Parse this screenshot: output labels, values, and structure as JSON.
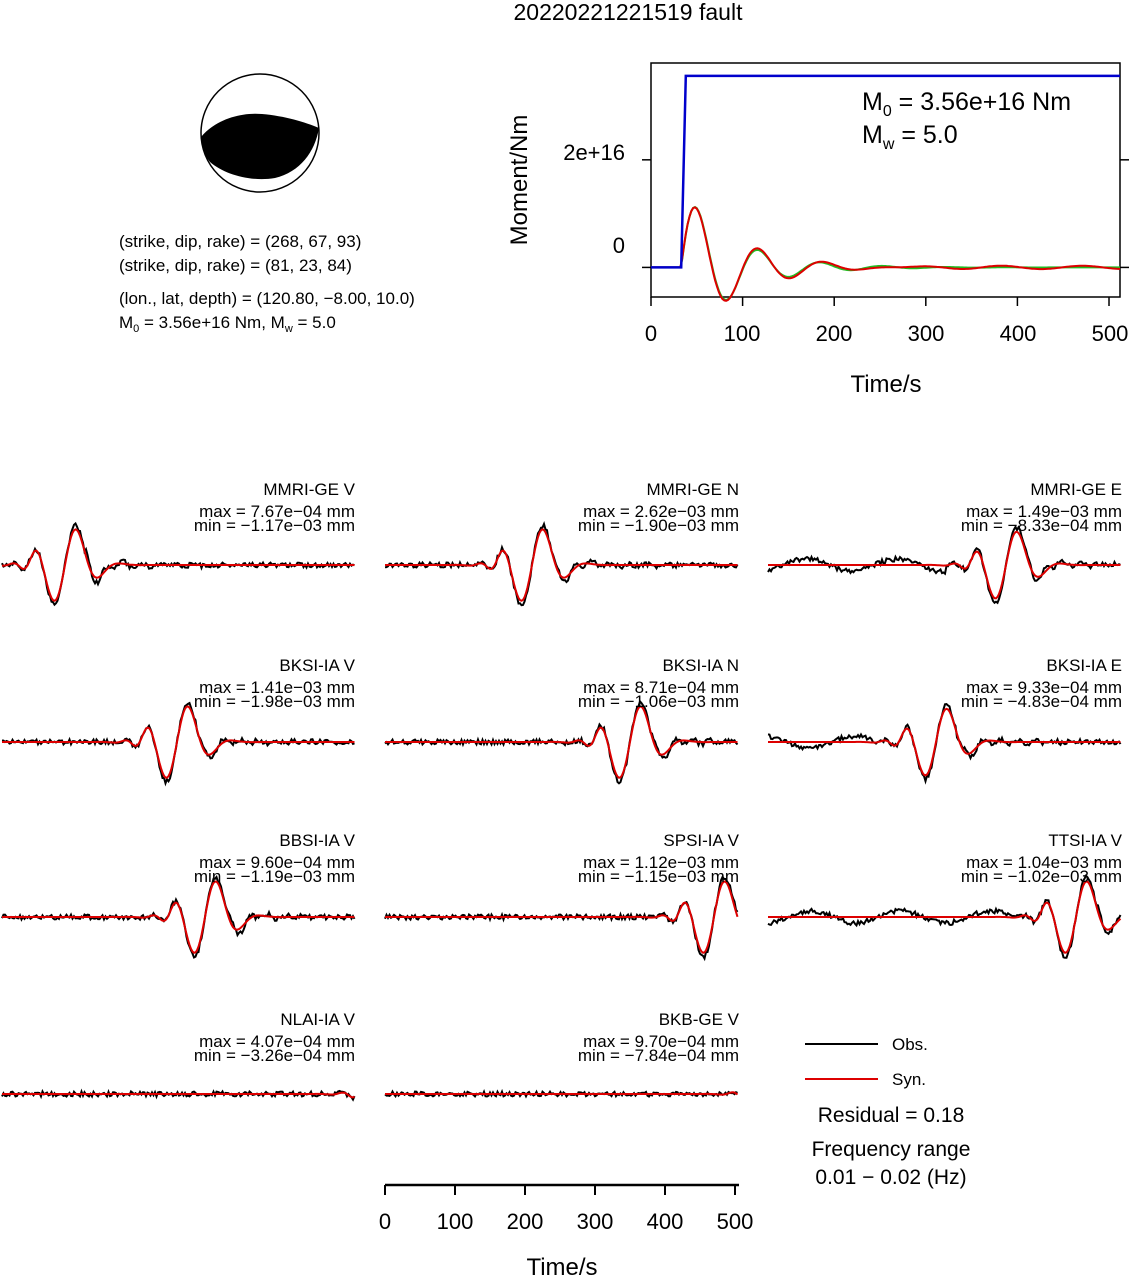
{
  "title": "20220221221519 fault",
  "mechanism": {
    "line1": "(strike, dip, rake) = (268, 67, 93)",
    "line2": "(strike, dip, rake) = (81, 23, 84)",
    "line3": "(lon., lat, depth) = (120.80, −8.00, 10.0)",
    "m0_label": "M",
    "m0_sub": "0",
    "m0_rest": " = 3.56e+16 Nm, M",
    "mw_sub": "w",
    "mw_rest": " = 5.0"
  },
  "moment_plot": {
    "ylabel": "Moment/Nm",
    "xlabel": "Time/s",
    "yticks": [
      "0",
      "2e+16"
    ],
    "xticks": [
      "0",
      "100",
      "200",
      "300",
      "400",
      "500"
    ],
    "annot_m0_pre": "M",
    "annot_m0_sub": "0",
    "annot_m0_rest": " = 3.56e+16 Nm",
    "annot_mw_pre": "M",
    "annot_mw_sub": "w",
    "annot_mw_rest": " = 5.0"
  },
  "waveform_axis": {
    "xlabel": "Time/s",
    "xticks": [
      "0",
      "100",
      "200",
      "300",
      "400",
      "500"
    ]
  },
  "legend": {
    "obs": "Obs.",
    "syn": "Syn.",
    "obs_color": "#000000",
    "syn_color": "#dd0000"
  },
  "residual": "Residual = 0.18",
  "freq_label": "Frequency range",
  "freq_range": "0.01 − 0.02 (Hz)",
  "colors": {
    "moment": "#0000cc",
    "rate_syn": "#dd0000",
    "rate_obs": "#22bb22"
  },
  "chart_data": [
    {
      "type": "line",
      "title": "",
      "xlabel": "Time/s",
      "ylabel": "Moment/Nm",
      "xlim": [
        0,
        512
      ],
      "ylim": [
        -5500000000000000.0,
        3.8e+16
      ],
      "series": [
        {
          "x": [
            0,
            33,
            38,
            512
          ],
          "values": [
            0,
            0,
            3.56e+16,
            3.56e+16
          ]
        }
      ]
    },
    {
      "type": "line",
      "stations": [
        {
          "name": "MMRI-GE V",
          "max": "max = 7.67e−04 mm",
          "min": "min = −1.17e−03 mm"
        },
        {
          "name": "MMRI-GE N",
          "max": "max = 2.62e−03 mm",
          "min": "min = −1.90e−03 mm"
        },
        {
          "name": "MMRI-GE E",
          "max": "max = 1.49e−03 mm",
          "min": "min = −8.33e−04 mm"
        },
        {
          "name": "BKSI-IA V",
          "max": "max = 1.41e−03 mm",
          "min": "min = −1.98e−03 mm"
        },
        {
          "name": "BKSI-IA N",
          "max": "max = 8.71e−04 mm",
          "min": "min = −1.06e−03 mm"
        },
        {
          "name": "BKSI-IA E",
          "max": "max = 9.33e−04 mm",
          "min": "min = −4.83e−04 mm"
        },
        {
          "name": "BBSI-IA V",
          "max": "max = 9.60e−04 mm",
          "min": "min = −1.19e−03 mm"
        },
        {
          "name": "SPSI-IA V",
          "max": "max = 1.12e−03 mm",
          "min": "min = −1.15e−03 mm"
        },
        {
          "name": "TTSI-IA V",
          "max": "max = 1.04e−03 mm",
          "min": "min = −1.02e−03 mm"
        },
        {
          "name": "NLAI-IA V",
          "max": "max = 4.07e−04 mm",
          "min": "min = −3.26e−04 mm"
        },
        {
          "name": "BKB-GE V",
          "max": "max = 9.70e−04 mm",
          "min": "min = −7.84e−04 mm"
        }
      ]
    }
  ]
}
